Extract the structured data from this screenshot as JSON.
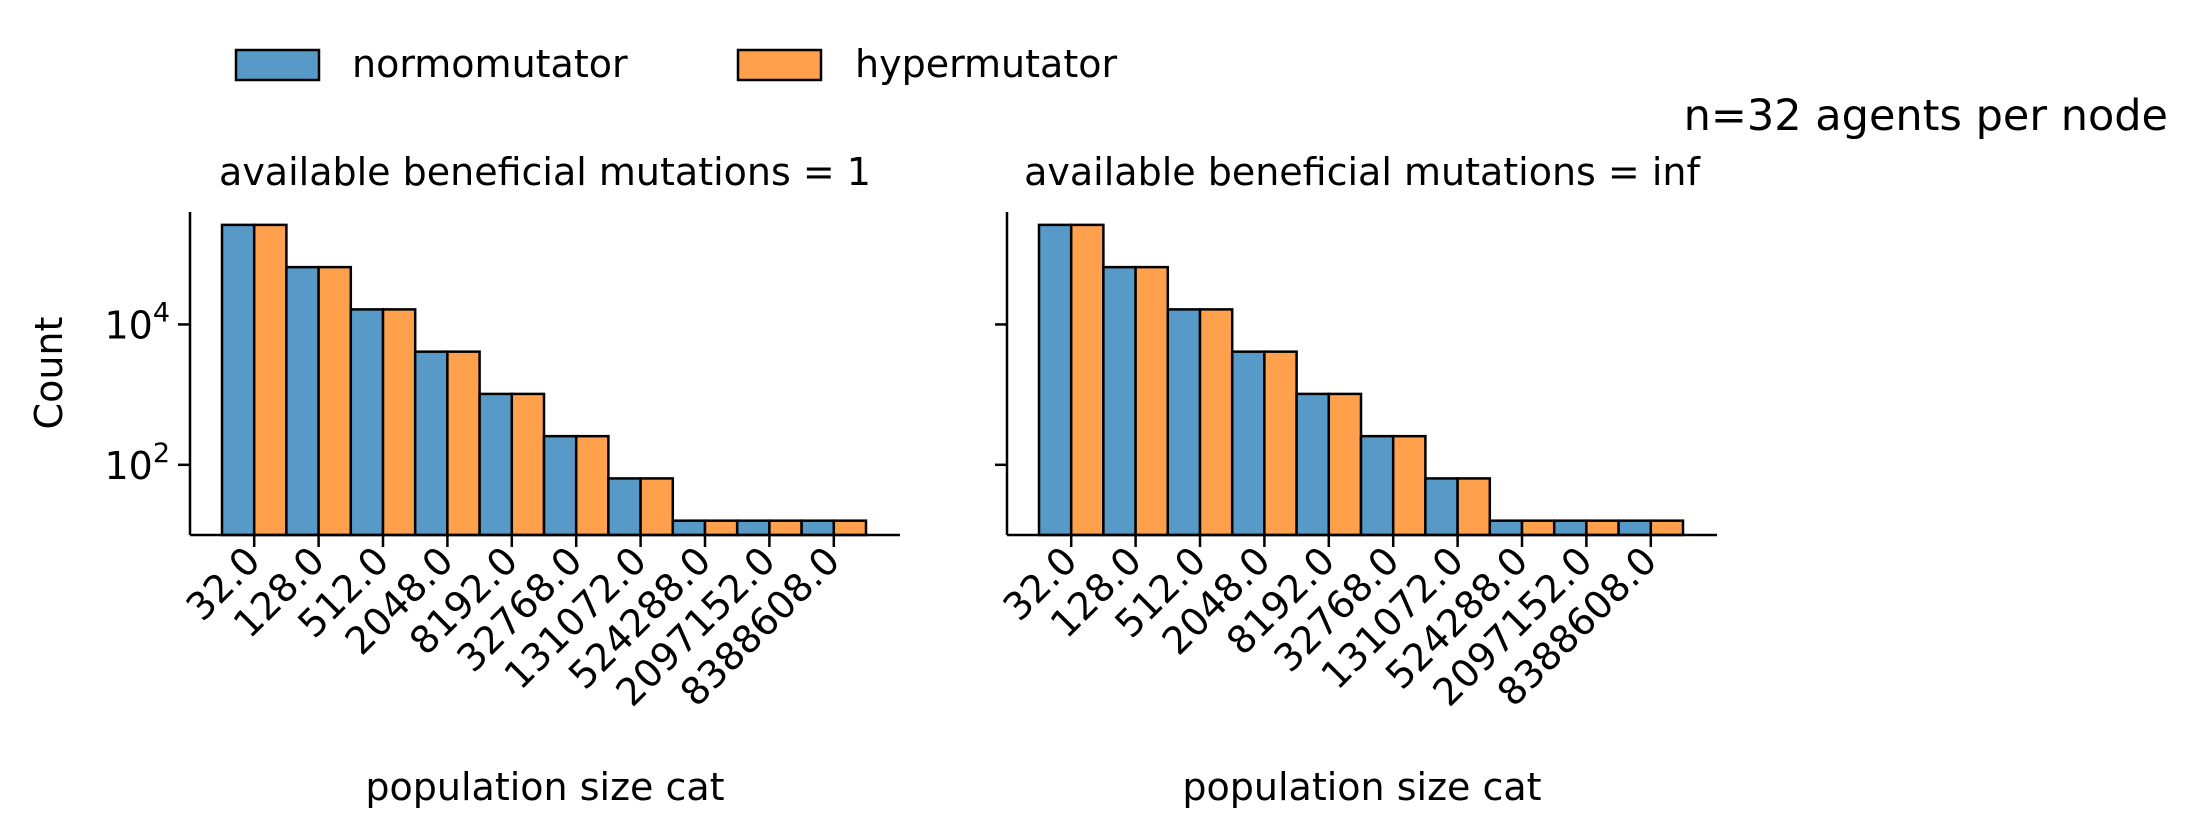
{
  "suptitle": "n=32 agents per node",
  "legend": {
    "placement": "top-left",
    "entries": [
      {
        "label": "normomutator",
        "color": "#5799c7"
      },
      {
        "label": "hypermutator",
        "color": "#ffa04d"
      }
    ]
  },
  "chart_data": [
    {
      "type": "bar",
      "title": "available beneficial mutations = 1",
      "xlabel": "population size cat",
      "ylabel": "Count",
      "yscale": "log",
      "ylim": [
        10,
        400000
      ],
      "yticks": [
        {
          "value": 100,
          "base": "10",
          "exp": "2"
        },
        {
          "value": 10000,
          "base": "10",
          "exp": "4"
        }
      ],
      "categories": [
        "32.0",
        "128.0",
        "512.0",
        "2048.0",
        "8192.0",
        "32768.0",
        "131072.0",
        "524288.0",
        "2097152.0",
        "8388608.0"
      ],
      "series": [
        {
          "name": "normomutator",
          "color": "#5799c7",
          "values": [
            262144,
            65536,
            16384,
            4096,
            1024,
            256,
            64,
            16,
            16,
            16
          ]
        },
        {
          "name": "hypermutator",
          "color": "#ffa04d",
          "values": [
            262144,
            65536,
            16384,
            4096,
            1024,
            256,
            64,
            16,
            16,
            16
          ]
        }
      ],
      "grid": false
    },
    {
      "type": "bar",
      "title": "available beneficial mutations = inf",
      "xlabel": "population size cat",
      "ylabel": "",
      "yscale": "log",
      "ylim": [
        10,
        400000
      ],
      "yticks": [
        {
          "value": 100,
          "base": "",
          "exp": ""
        },
        {
          "value": 10000,
          "base": "",
          "exp": ""
        }
      ],
      "categories": [
        "32.0",
        "128.0",
        "512.0",
        "2048.0",
        "8192.0",
        "32768.0",
        "131072.0",
        "524288.0",
        "2097152.0",
        "8388608.0"
      ],
      "series": [
        {
          "name": "normomutator",
          "color": "#5799c7",
          "values": [
            262144,
            65536,
            16384,
            4096,
            1024,
            256,
            64,
            16,
            16,
            16
          ]
        },
        {
          "name": "hypermutator",
          "color": "#ffa04d",
          "values": [
            262144,
            65536,
            16384,
            4096,
            1024,
            256,
            64,
            16,
            16,
            16
          ]
        }
      ],
      "grid": false
    }
  ]
}
